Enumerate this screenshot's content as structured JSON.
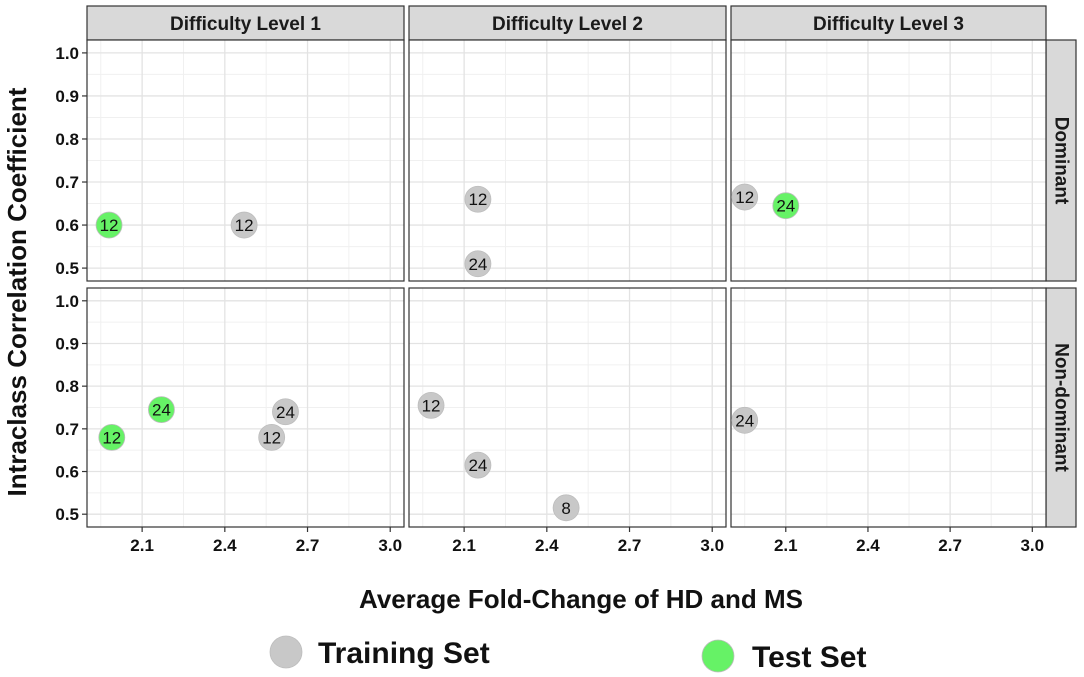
{
  "chart_data": {
    "type": "scatter",
    "xlabel": "Average Fold-Change of HD and MS",
    "ylabel": "Intraclass Correlation Coefficient",
    "xlim": [
      1.9,
      3.05
    ],
    "ylim": [
      0.47,
      1.03
    ],
    "x_ticks": [
      "2.1",
      "2.4",
      "2.7",
      "3.0"
    ],
    "y_ticks": [
      "0.5",
      "0.6",
      "0.7",
      "0.8",
      "0.9",
      "1.0"
    ],
    "columns": [
      "Difficulty Level 1",
      "Difficulty Level 2",
      "Difficulty Level 3"
    ],
    "rows": [
      "Dominant",
      "Non-dominant"
    ],
    "grid": true,
    "legend": {
      "placement": "bottom",
      "items": [
        {
          "name": "Training Set",
          "color": "#c8c8c8"
        },
        {
          "name": "Test Set",
          "color": "#66f266"
        }
      ]
    },
    "panels": [
      {
        "col": 0,
        "row": 0,
        "points": [
          {
            "x": 1.98,
            "y": 0.6,
            "label": "12",
            "set": "Test Set"
          },
          {
            "x": 2.47,
            "y": 0.6,
            "label": "12",
            "set": "Training Set"
          }
        ]
      },
      {
        "col": 1,
        "row": 0,
        "points": [
          {
            "x": 2.15,
            "y": 0.66,
            "label": "12",
            "set": "Training Set"
          },
          {
            "x": 2.15,
            "y": 0.51,
            "label": "24",
            "set": "Training Set"
          }
        ]
      },
      {
        "col": 2,
        "row": 0,
        "points": [
          {
            "x": 1.95,
            "y": 0.665,
            "label": "12",
            "set": "Training Set"
          },
          {
            "x": 2.1,
            "y": 0.645,
            "label": "24",
            "set": "Test Set"
          }
        ]
      },
      {
        "col": 0,
        "row": 1,
        "points": [
          {
            "x": 1.99,
            "y": 0.68,
            "label": "12",
            "set": "Test Set"
          },
          {
            "x": 2.17,
            "y": 0.745,
            "label": "24",
            "set": "Test Set"
          },
          {
            "x": 2.62,
            "y": 0.74,
            "label": "24",
            "set": "Training Set"
          },
          {
            "x": 2.57,
            "y": 0.68,
            "label": "12",
            "set": "Training Set"
          }
        ]
      },
      {
        "col": 1,
        "row": 1,
        "points": [
          {
            "x": 1.98,
            "y": 0.755,
            "label": "12",
            "set": "Training Set"
          },
          {
            "x": 2.15,
            "y": 0.615,
            "label": "24",
            "set": "Training Set"
          },
          {
            "x": 2.47,
            "y": 0.515,
            "label": "8",
            "set": "Training Set"
          }
        ]
      },
      {
        "col": 2,
        "row": 1,
        "points": [
          {
            "x": 1.95,
            "y": 0.72,
            "label": "24",
            "set": "Training Set"
          }
        ]
      }
    ]
  }
}
